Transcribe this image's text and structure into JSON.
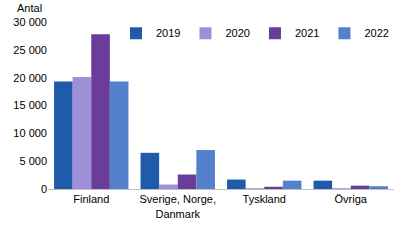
{
  "chart_data": {
    "type": "bar",
    "ylabel": "Antal",
    "categories": [
      "Finland",
      "Sverige, Norge, Danmark",
      "Tyskland",
      "Övriga"
    ],
    "series": [
      {
        "name": "2019",
        "color": "#1f5ba8",
        "values": [
          19300,
          6500,
          1700,
          1500
        ]
      },
      {
        "name": "2020",
        "color": "#9d90d8",
        "values": [
          20100,
          800,
          150,
          150
        ]
      },
      {
        "name": "2021",
        "color": "#6a3d9a",
        "values": [
          27800,
          2600,
          400,
          600
        ]
      },
      {
        "name": "2022",
        "color": "#5580cc",
        "values": [
          19300,
          7000,
          1500,
          500
        ]
      }
    ],
    "ylim": [
      0,
      30000
    ],
    "yticks": [
      0,
      {
        "value": 5000,
        "label": "5 000"
      },
      {
        "value": 10000,
        "label": "10 000"
      },
      {
        "value": 15000,
        "label": "15 000"
      },
      {
        "value": 20000,
        "label": "20 000"
      },
      {
        "value": 25000,
        "label": "25 000"
      },
      {
        "value": 30000,
        "label": "30 000"
      }
    ],
    "grid": false,
    "legend": "upper right"
  }
}
